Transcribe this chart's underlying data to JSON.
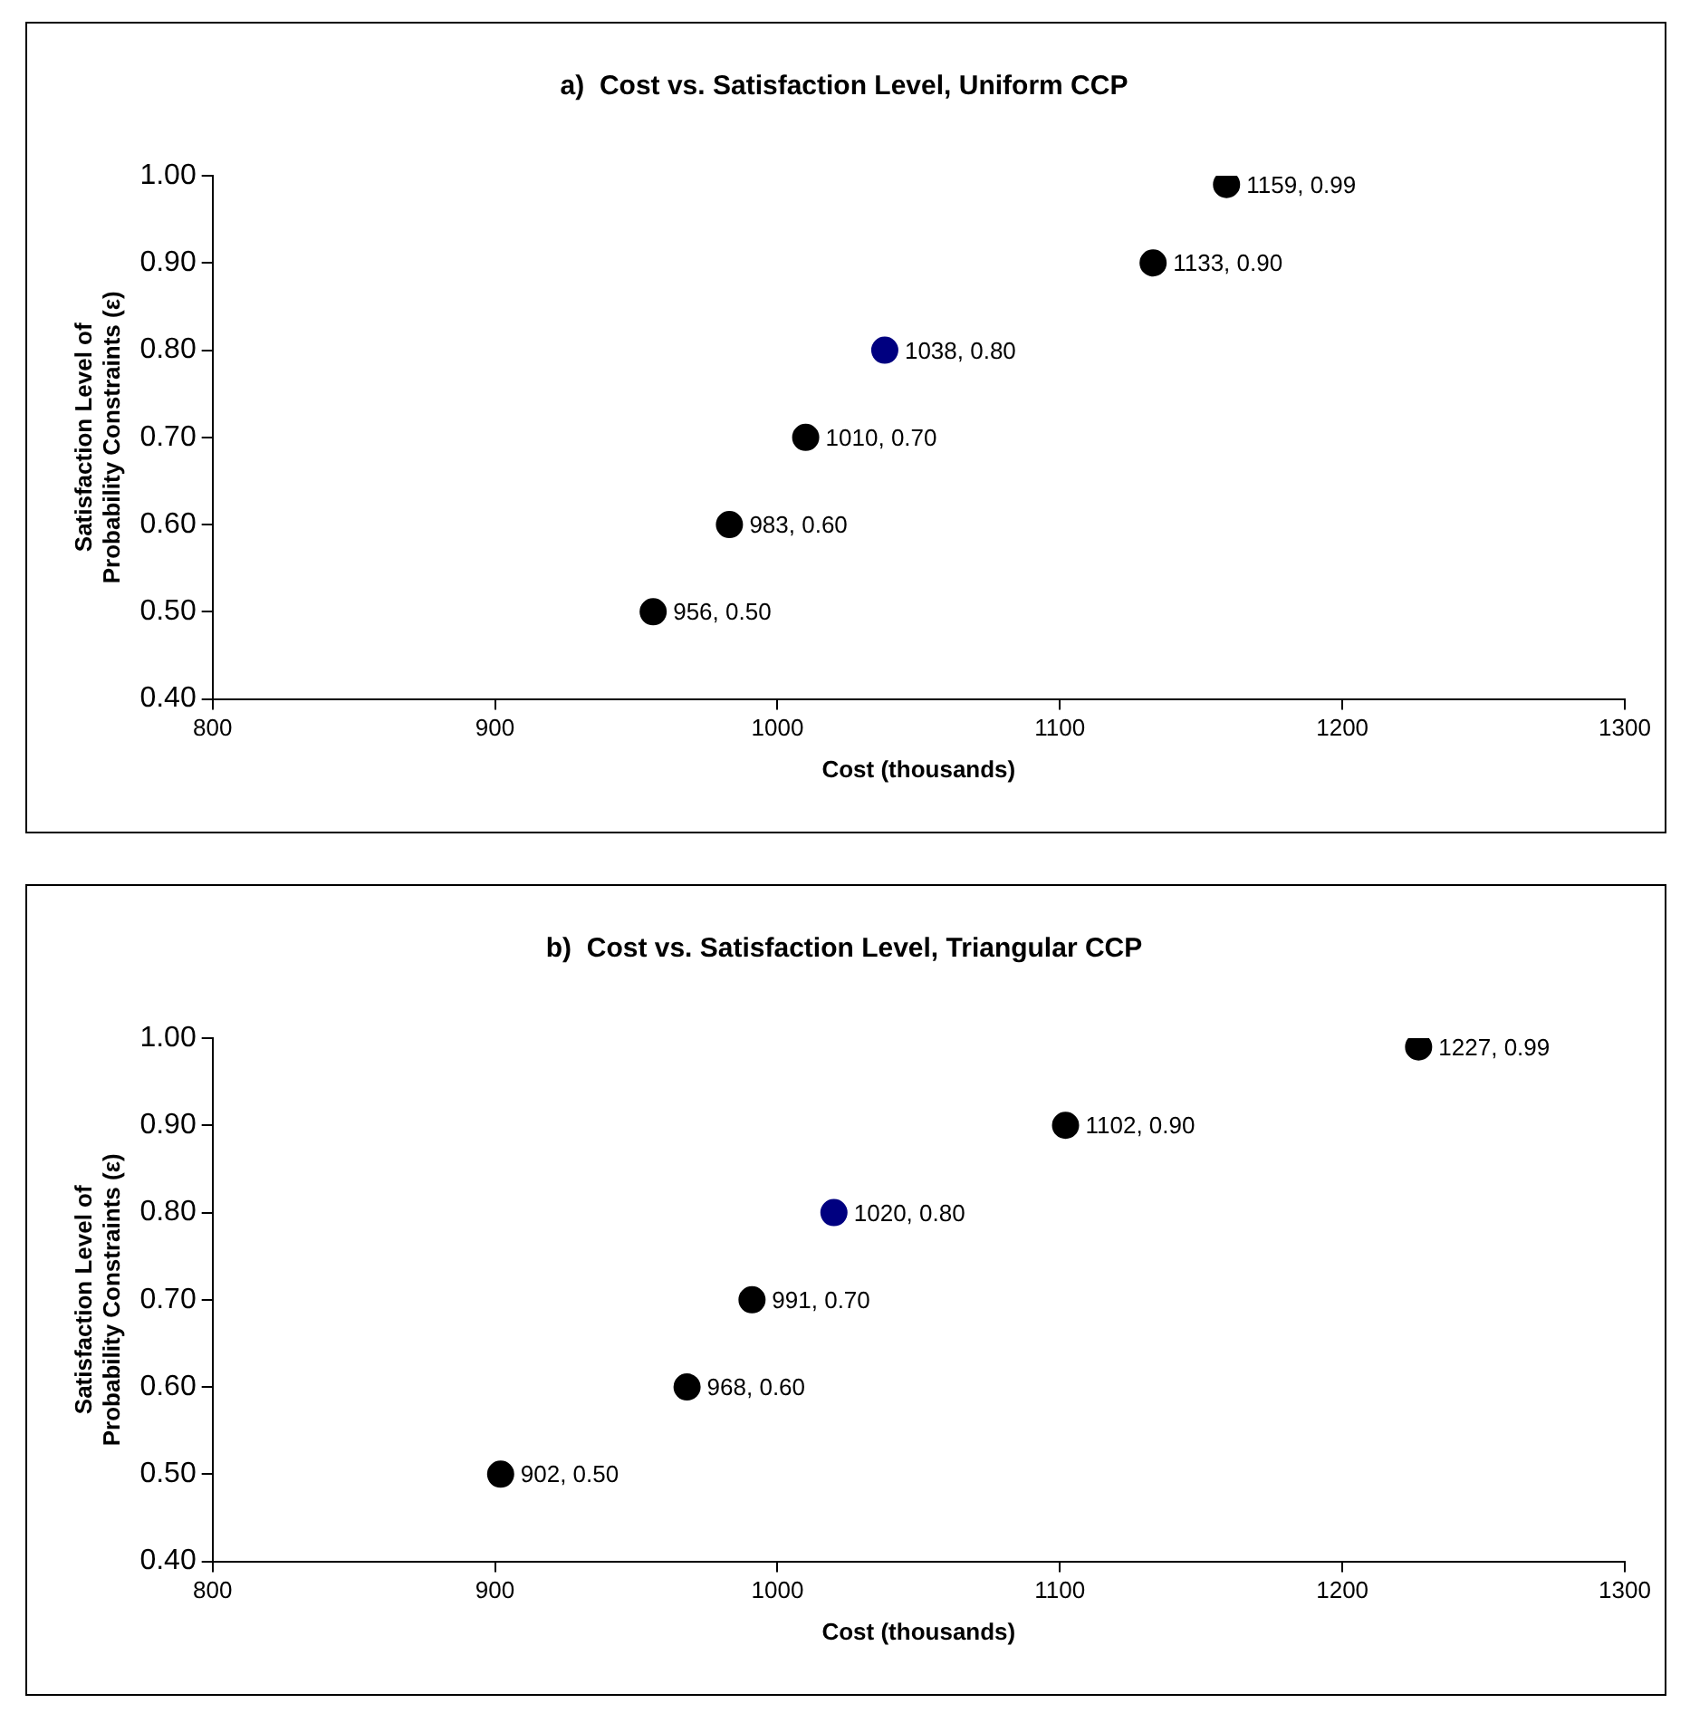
{
  "chart_data": [
    {
      "type": "scatter",
      "title": "a)  Cost vs. Satisfaction Level, Uniform CCP",
      "xlabel": "Cost (thousands)",
      "ylabel": "Satisfaction Level of\nProbability Constraints (ε)",
      "x": [
        956,
        983,
        1010,
        1038,
        1133,
        1159
      ],
      "values": [
        0.5,
        0.6,
        0.7,
        0.8,
        0.9,
        0.99
      ],
      "colors": [
        "#000000",
        "#000000",
        "#000000",
        "#000080",
        "#000000",
        "#000000"
      ],
      "value_labels": [
        "956, 0.50",
        "983, 0.60",
        "1010, 0.70",
        "1038, 0.80",
        "1133, 0.90",
        "1159, 0.99"
      ],
      "xlim": [
        800,
        1300
      ],
      "xticks": [
        800,
        900,
        1000,
        1100,
        1200,
        1300
      ],
      "ylim": [
        0.4,
        1.0
      ],
      "yticks": [
        {
          "value": 0.4,
          "label": "0.40"
        },
        {
          "value": 0.5,
          "label": "0.50"
        },
        {
          "value": 0.6,
          "label": "0.60"
        },
        {
          "value": 0.7,
          "label": "0.70"
        },
        {
          "value": 0.8,
          "label": "0.80"
        },
        {
          "value": 0.9,
          "label": "0.90"
        },
        {
          "value": 1.0,
          "label": "1.00"
        }
      ],
      "grid": false,
      "legend": false,
      "marker": "circle"
    },
    {
      "type": "scatter",
      "title": "b)  Cost vs. Satisfaction Level, Triangular CCP",
      "xlabel": "Cost (thousands)",
      "ylabel": "Satisfaction Level of\nProbability Constraints (ε)",
      "x": [
        902,
        968,
        991,
        1020,
        1102,
        1227
      ],
      "values": [
        0.5,
        0.6,
        0.7,
        0.8,
        0.9,
        0.99
      ],
      "colors": [
        "#000000",
        "#000000",
        "#000000",
        "#000080",
        "#000000",
        "#000000"
      ],
      "value_labels": [
        "902, 0.50",
        "968, 0.60",
        "991, 0.70",
        "1020, 0.80",
        "1102, 0.90",
        "1227, 0.99"
      ],
      "xlim": [
        800,
        1300
      ],
      "xticks": [
        800,
        900,
        1000,
        1100,
        1200,
        1300
      ],
      "ylim": [
        0.4,
        1.0
      ],
      "yticks": [
        {
          "value": 0.4,
          "label": "0.40"
        },
        {
          "value": 0.5,
          "label": "0.50"
        },
        {
          "value": 0.6,
          "label": "0.60"
        },
        {
          "value": 0.7,
          "label": "0.70"
        },
        {
          "value": 0.8,
          "label": "0.80"
        },
        {
          "value": 0.9,
          "label": "0.90"
        },
        {
          "value": 1.0,
          "label": "1.00"
        }
      ],
      "grid": false,
      "legend": false,
      "marker": "circle"
    }
  ]
}
